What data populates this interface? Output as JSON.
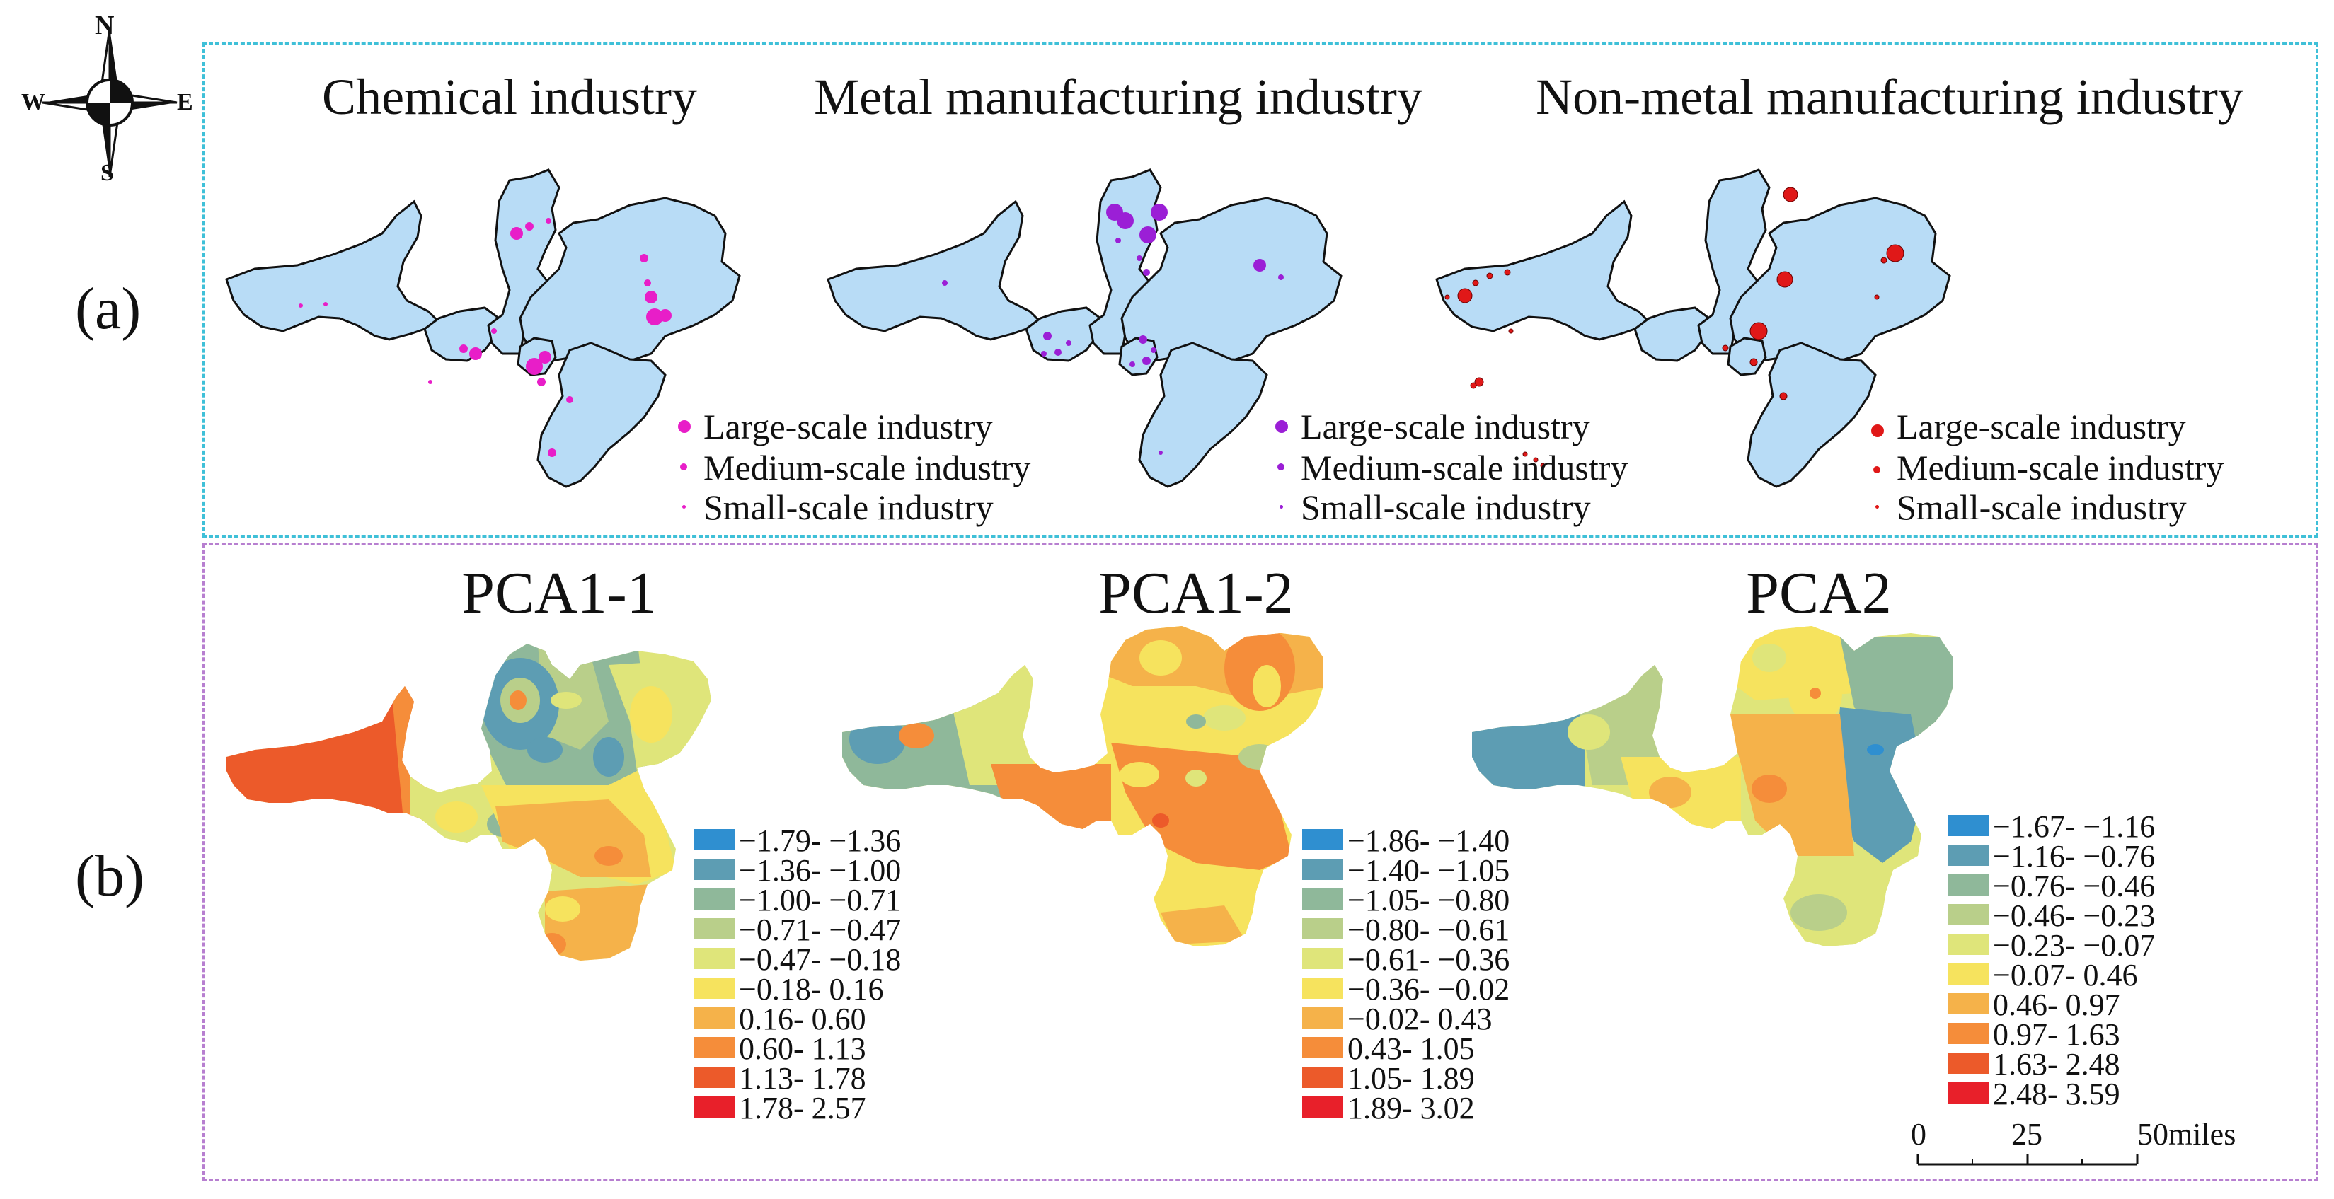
{
  "compass": {
    "north": "N",
    "south": "S",
    "east": "E",
    "west": "W"
  },
  "panel_a": {
    "label": "(a)",
    "maps": [
      {
        "title": "Chemical industry",
        "color": "#e81ec8",
        "legend": [
          "Large-scale industry",
          "Medium-scale industry",
          "Small-scale industry"
        ]
      },
      {
        "title": "Metal manufacturing industry",
        "color": "#9b1fd6",
        "legend": [
          "Large-scale industry",
          "Medium-scale industry",
          "Small-scale industry"
        ]
      },
      {
        "title": "Non-metal manufacturing industry",
        "color": "#e01818",
        "legend": [
          "Large-scale industry",
          "Medium-scale industry",
          "Small-scale industry"
        ]
      }
    ]
  },
  "panel_b": {
    "label": "(b)",
    "maps": [
      {
        "title": "PCA1-1",
        "classes": [
          "−1.79- −1.36",
          "−1.36- −1.00",
          "−1.00- −0.71",
          "−0.71- −0.47",
          "−0.47- −0.18",
          "−0.18- 0.16",
          "0.16- 0.60",
          "0.60- 1.13",
          "1.13- 1.78",
          "1.78- 2.57"
        ]
      },
      {
        "title": "PCA1-2",
        "classes": [
          "−1.86- −1.40",
          "−1.40- −1.05",
          "−1.05- −0.80",
          "−0.80- −0.61",
          "−0.61- −0.36",
          "−0.36- −0.02",
          "−0.02- 0.43",
          "0.43- 1.05",
          "1.05- 1.89",
          "1.89- 3.02"
        ]
      },
      {
        "title": "PCA2",
        "classes": [
          "−1.67- −1.16",
          "−1.16- −0.76",
          "−0.76- −0.46",
          "−0.46- −0.23",
          "−0.23- −0.07",
          "−0.07- 0.46",
          "0.46- 0.97",
          "0.97- 1.63",
          "1.63- 2.48",
          "2.48- 3.59"
        ]
      }
    ],
    "class_colors": [
      "#2f8fd0",
      "#5d9db3",
      "#8fb89a",
      "#b9cf8a",
      "#dfe57a",
      "#f6e35e",
      "#f5b24a",
      "#f58d3a",
      "#ec5a2a",
      "#e8202a"
    ]
  },
  "scale_bar": {
    "ticks": [
      "0",
      "25",
      "50miles"
    ]
  }
}
